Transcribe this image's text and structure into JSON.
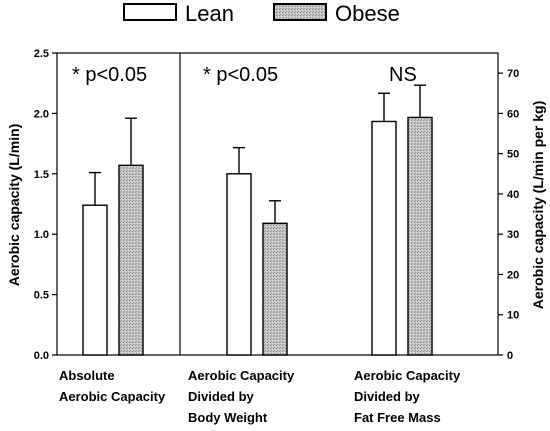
{
  "chart_data": {
    "type": "bar",
    "legend": {
      "placement": "top-center",
      "entries": [
        {
          "name": "Lean",
          "style": "white"
        },
        {
          "name": "Obese",
          "style": "gray-stipple"
        }
      ]
    },
    "categories": [
      {
        "lines": [
          "Absolute",
          "Aerobic Capacity"
        ],
        "axis": "left"
      },
      {
        "lines": [
          "Aerobic Capacity",
          "Divided by",
          "Body Weight"
        ],
        "axis": "right"
      },
      {
        "lines": [
          "Aerobic Capacity",
          "Divided by",
          "Fat Free Mass"
        ],
        "axis": "right"
      }
    ],
    "annotations": [
      "* p<0.05",
      "* p<0.05",
      "NS"
    ],
    "series": [
      {
        "name": "Lean",
        "values": [
          1.24,
          45.0,
          58.0
        ],
        "errors": [
          0.27,
          6.5,
          7.0
        ]
      },
      {
        "name": "Obese",
        "values": [
          1.57,
          32.7,
          59.0
        ],
        "errors": [
          0.39,
          5.6,
          8.0
        ]
      }
    ],
    "y_left": {
      "label": "Aerobic capacity (L/min)",
      "range": [
        0,
        2.5
      ],
      "ticks": [
        "0.0",
        "0.5",
        "1.0",
        "1.5",
        "2.0",
        "2.5"
      ]
    },
    "y_right": {
      "label": "Aerobic capacity (L/min per kg)",
      "range": [
        0,
        75
      ],
      "ticks": [
        "0",
        "10",
        "20",
        "30",
        "40",
        "50",
        "60",
        "70"
      ]
    },
    "grid": false,
    "colors": {
      "lean": "#ffffff",
      "obese": "#c8c8c8",
      "stroke": "#000000"
    }
  }
}
